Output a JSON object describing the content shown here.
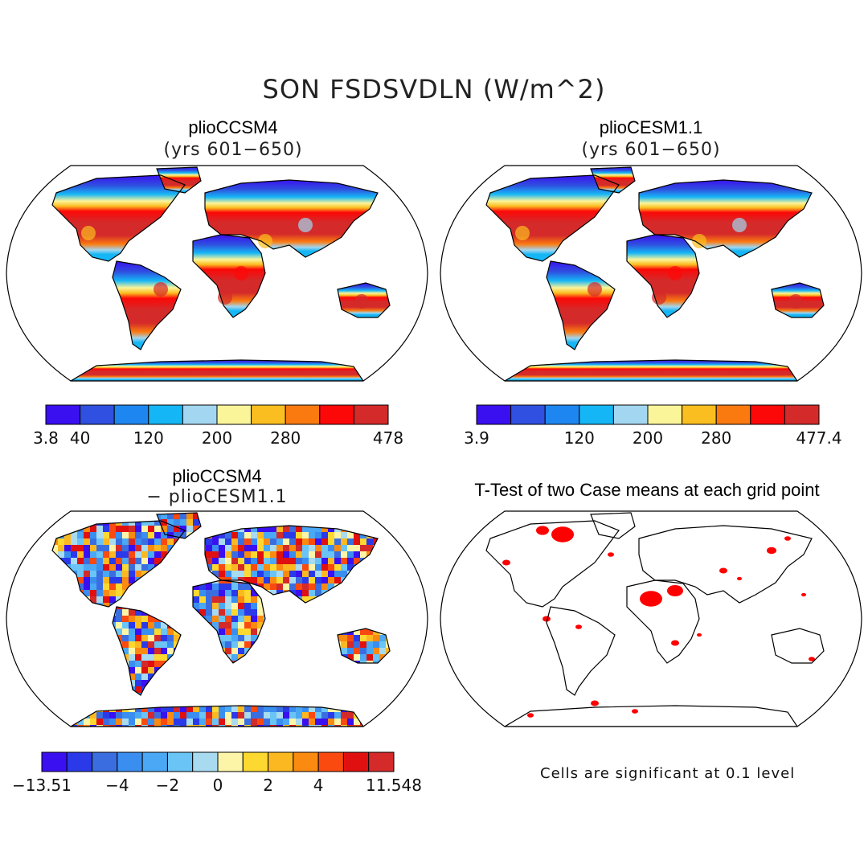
{
  "title": "SON FSDSVDLN (W/m^2)",
  "panels": [
    {
      "id": "tl",
      "title": "plioCCSM4",
      "subtitle": "(yrs 601−650)",
      "kind": "field"
    },
    {
      "id": "tr",
      "title": "plioCESM1.1",
      "subtitle": "(yrs 601−650)",
      "kind": "field"
    },
    {
      "id": "bl",
      "title": "plioCCSM4",
      "subtitle": "− plioCESM1.1",
      "kind": "difference"
    },
    {
      "id": "br",
      "title": "T-Test of two Case means at each grid point",
      "subtitle": "",
      "kind": "significance"
    }
  ],
  "colorbars": [
    {
      "id": "tl",
      "colors": [
        "#3a10f0",
        "#2f50e0",
        "#1e86f0",
        "#15b6f5",
        "#a3d6f0",
        "#fbf59a",
        "#fbbe20",
        "#fa7a10",
        "#fc0808",
        "#d42a2a"
      ],
      "labels": [
        "3.8",
        "40",
        "120",
        "200",
        "280",
        "478"
      ],
      "label_at": [
        0,
        1,
        3,
        5,
        7,
        10
      ]
    },
    {
      "id": "tr",
      "colors": [
        "#3a10f0",
        "#2f50e0",
        "#1e86f0",
        "#15b6f5",
        "#a3d6f0",
        "#fbf59a",
        "#fbbe20",
        "#fa7a10",
        "#fc0808",
        "#d42a2a"
      ],
      "labels": [
        "3.9",
        "120",
        "200",
        "280",
        "477.4"
      ],
      "label_at": [
        0,
        3,
        5,
        7,
        10
      ]
    },
    {
      "id": "bl",
      "colors": [
        "#3a10f0",
        "#2a3ae8",
        "#3a6ee0",
        "#3a8ef0",
        "#4aa8f5",
        "#6ac4f5",
        "#a8daf0",
        "#fcf5a8",
        "#fcd830",
        "#fcb820",
        "#fa8a10",
        "#fa4a10",
        "#e01010",
        "#d42a2a"
      ],
      "labels": [
        "−13.51",
        "−4",
        "−2",
        "0",
        "2",
        "4",
        "11.548"
      ],
      "label_at": [
        0,
        3,
        5,
        7,
        9,
        11,
        14
      ]
    }
  ],
  "note": "Cells are significant at 0.1 level",
  "colors": {
    "continent_outline": "#000000",
    "significant_cell": "#ff0000",
    "map_frame": "#000000"
  }
}
